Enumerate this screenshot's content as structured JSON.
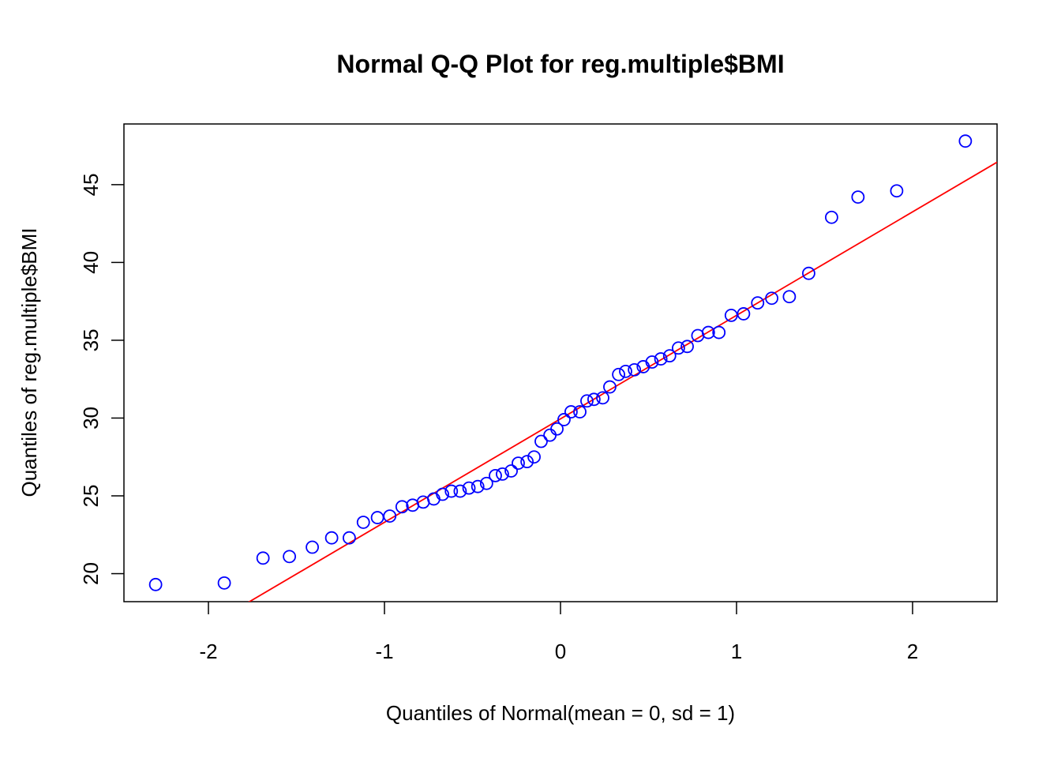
{
  "chart_data": {
    "type": "scatter",
    "title": "Normal Q-Q Plot for reg.multiple$BMI",
    "xlabel": "Quantiles of Normal(mean = 0, sd = 1)",
    "ylabel": "Quantiles of reg.multiple$BMI",
    "xlim": [
      -2.48,
      2.48
    ],
    "ylim": [
      18.2,
      48.9
    ],
    "xticks": [
      -2,
      -1,
      0,
      1,
      2
    ],
    "xtick_labels": [
      "-2",
      "-1",
      "0",
      "1",
      "2"
    ],
    "yticks": [
      20,
      25,
      30,
      35,
      40,
      45
    ],
    "ytick_labels": [
      "20",
      "25",
      "30",
      "35",
      "40",
      "45"
    ],
    "grid": false,
    "point_color": "#0000ff",
    "line_color": "#ff0000",
    "points": [
      {
        "x": -2.3,
        "y": 19.3
      },
      {
        "x": -1.91,
        "y": 19.4
      },
      {
        "x": -1.69,
        "y": 21.0
      },
      {
        "x": -1.54,
        "y": 21.1
      },
      {
        "x": -1.41,
        "y": 21.7
      },
      {
        "x": -1.3,
        "y": 22.3
      },
      {
        "x": -1.2,
        "y": 22.3
      },
      {
        "x": -1.12,
        "y": 23.3
      },
      {
        "x": -1.04,
        "y": 23.6
      },
      {
        "x": -0.97,
        "y": 23.7
      },
      {
        "x": -0.9,
        "y": 24.3
      },
      {
        "x": -0.84,
        "y": 24.4
      },
      {
        "x": -0.78,
        "y": 24.6
      },
      {
        "x": -0.72,
        "y": 24.8
      },
      {
        "x": -0.67,
        "y": 25.1
      },
      {
        "x": -0.62,
        "y": 25.3
      },
      {
        "x": -0.57,
        "y": 25.3
      },
      {
        "x": -0.52,
        "y": 25.5
      },
      {
        "x": -0.47,
        "y": 25.6
      },
      {
        "x": -0.42,
        "y": 25.8
      },
      {
        "x": -0.37,
        "y": 26.3
      },
      {
        "x": -0.33,
        "y": 26.4
      },
      {
        "x": -0.28,
        "y": 26.6
      },
      {
        "x": -0.24,
        "y": 27.1
      },
      {
        "x": -0.19,
        "y": 27.2
      },
      {
        "x": -0.15,
        "y": 27.5
      },
      {
        "x": -0.11,
        "y": 28.5
      },
      {
        "x": -0.06,
        "y": 28.9
      },
      {
        "x": -0.02,
        "y": 29.3
      },
      {
        "x": 0.02,
        "y": 29.9
      },
      {
        "x": 0.06,
        "y": 30.4
      },
      {
        "x": 0.11,
        "y": 30.4
      },
      {
        "x": 0.15,
        "y": 31.1
      },
      {
        "x": 0.19,
        "y": 31.2
      },
      {
        "x": 0.24,
        "y": 31.3
      },
      {
        "x": 0.28,
        "y": 32.0
      },
      {
        "x": 0.33,
        "y": 32.8
      },
      {
        "x": 0.37,
        "y": 33.0
      },
      {
        "x": 0.42,
        "y": 33.1
      },
      {
        "x": 0.47,
        "y": 33.3
      },
      {
        "x": 0.52,
        "y": 33.6
      },
      {
        "x": 0.57,
        "y": 33.8
      },
      {
        "x": 0.62,
        "y": 34.0
      },
      {
        "x": 0.67,
        "y": 34.5
      },
      {
        "x": 0.72,
        "y": 34.6
      },
      {
        "x": 0.78,
        "y": 35.3
      },
      {
        "x": 0.84,
        "y": 35.5
      },
      {
        "x": 0.9,
        "y": 35.5
      },
      {
        "x": 0.97,
        "y": 36.6
      },
      {
        "x": 1.04,
        "y": 36.7
      },
      {
        "x": 1.12,
        "y": 37.4
      },
      {
        "x": 1.2,
        "y": 37.7
      },
      {
        "x": 1.3,
        "y": 37.8
      },
      {
        "x": 1.41,
        "y": 39.3
      },
      {
        "x": 1.54,
        "y": 42.9
      },
      {
        "x": 1.69,
        "y": 44.2
      },
      {
        "x": 1.91,
        "y": 44.6
      },
      {
        "x": 2.3,
        "y": 47.8
      }
    ],
    "reference_line": {
      "intercept": 29.95,
      "slope": 6.65
    }
  }
}
